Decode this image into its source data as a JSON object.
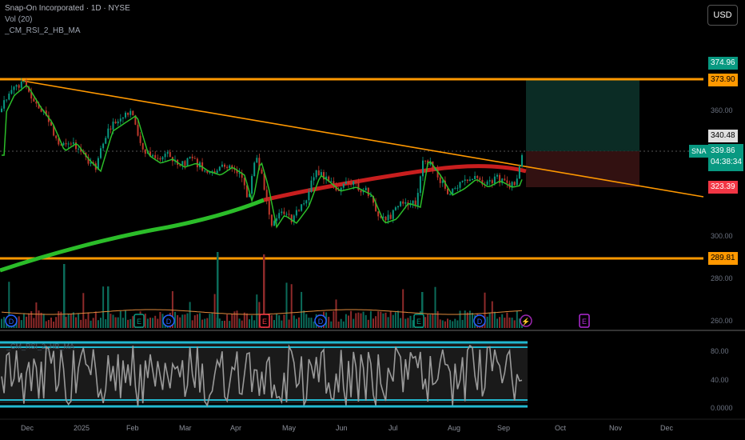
{
  "legend": {
    "title": "Snap-On Incorporated · 1D · NYSE",
    "line2": "Vol (20)",
    "line3": "_CM_RSI_2_HB_MA"
  },
  "currency_button": "USD",
  "price_labels": {
    "target": "374.96",
    "resistance": "373.90",
    "entry": "340.48",
    "ticker": "SNA",
    "current": "339.86",
    "countdown": "04:38:34",
    "stop": "323.39",
    "support": "289.81"
  },
  "axis_labels": {
    "p360": "360.00",
    "p300": "300.00",
    "p280": "280.00",
    "p260": "260.00"
  },
  "indicator": {
    "title": "_CM_RSI_2_HB_MA",
    "a80": "80.00",
    "a40": "40.00",
    "a0": "0.0000"
  },
  "x_labels": [
    "Dec",
    "2025",
    "Feb",
    "Mar",
    "Apr",
    "May",
    "Jun",
    "Jul",
    "Aug",
    "Sep",
    "Oct",
    "Nov",
    "Dec"
  ],
  "events": [
    {
      "label": "D",
      "color": "#2962ff"
    },
    {
      "label": "E",
      "color": "#089981"
    },
    {
      "label": "D",
      "color": "#2962ff"
    },
    {
      "label": "E",
      "color": "#f23645"
    },
    {
      "label": "D",
      "color": "#2962ff"
    },
    {
      "label": "E",
      "color": "#089981"
    },
    {
      "label": "D",
      "color": "#2962ff"
    },
    {
      "label": "⚡",
      "color": "#9c27b0"
    },
    {
      "label": "E",
      "color": "#b02ad6"
    }
  ],
  "colors": {
    "orange": "#ff9800",
    "green_tag": "#089981",
    "red_tag": "#f23645",
    "ma_green": "#2bbd29",
    "ma_red": "#c81e1e"
  }
}
